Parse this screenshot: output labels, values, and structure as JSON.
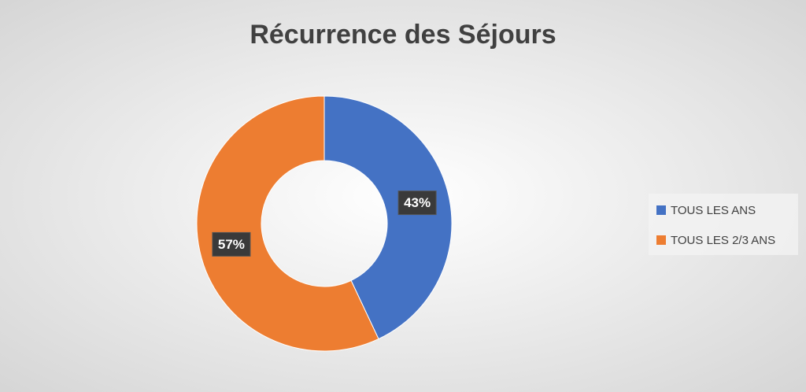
{
  "chart_data": {
    "type": "donut",
    "title": "Récurrence des Séjours",
    "categories": [
      "TOUS LES ANS",
      "TOUS LES 2/3 ANS"
    ],
    "values": [
      43,
      57
    ],
    "value_labels": [
      "43%",
      "57%"
    ],
    "colors": [
      "#4472c4",
      "#ed7d31"
    ],
    "legend": "right"
  }
}
